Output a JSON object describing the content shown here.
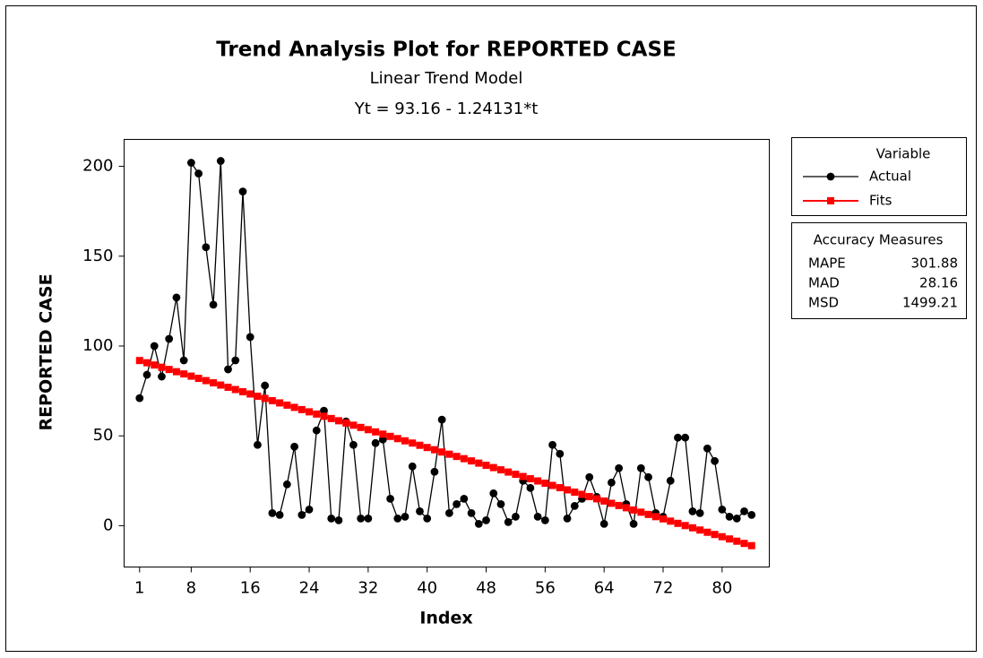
{
  "chart_data": {
    "type": "line",
    "title": "Trend Analysis Plot for REPORTED CASE",
    "subtitle": "Linear Trend Model",
    "equation": "Yt = 93.16 - 1.24131*t",
    "xlabel": "Index",
    "ylabel": "REPORTED CASE",
    "x": [
      1,
      2,
      3,
      4,
      5,
      6,
      7,
      8,
      9,
      10,
      11,
      12,
      13,
      14,
      15,
      16,
      17,
      18,
      19,
      20,
      21,
      22,
      23,
      24,
      25,
      26,
      27,
      28,
      29,
      30,
      31,
      32,
      33,
      34,
      35,
      36,
      37,
      38,
      39,
      40,
      41,
      42,
      43,
      44,
      45,
      46,
      47,
      48,
      49,
      50,
      51,
      52,
      53,
      54,
      55,
      56,
      57,
      58,
      59,
      60,
      61,
      62,
      63,
      64,
      65,
      66,
      67,
      68,
      69,
      70,
      71,
      72,
      73,
      74,
      75,
      76,
      77,
      78,
      79,
      80,
      81,
      82,
      83,
      84
    ],
    "series": [
      {
        "name": "Actual",
        "color": "#000000",
        "marker": "circle",
        "values": [
          71,
          84,
          100,
          83,
          104,
          127,
          92,
          202,
          196,
          155,
          123,
          203,
          87,
          92,
          186,
          105,
          45,
          78,
          7,
          6,
          23,
          44,
          6,
          9,
          53,
          64,
          4,
          3,
          58,
          45,
          4,
          4,
          46,
          48,
          15,
          4,
          5,
          33,
          8,
          4,
          30,
          59,
          7,
          12,
          15,
          7,
          1,
          3,
          18,
          12,
          2,
          5,
          25,
          21,
          5,
          3,
          45,
          40,
          4,
          11,
          15,
          27,
          16,
          1,
          24,
          32,
          12,
          1,
          32,
          27,
          7,
          5,
          25,
          49,
          49,
          8,
          7,
          43,
          36,
          9,
          5,
          4,
          8,
          6
        ]
      },
      {
        "name": "Fits",
        "color": "#ff0000",
        "marker": "square",
        "values": [
          91.92,
          90.68,
          89.44,
          88.19,
          86.95,
          85.71,
          84.47,
          83.23,
          81.99,
          80.75,
          79.51,
          78.26,
          77.02,
          75.78,
          74.54,
          73.3,
          72.06,
          70.82,
          69.58,
          68.33,
          67.09,
          65.85,
          64.61,
          63.37,
          62.13,
          60.89,
          59.64,
          58.4,
          57.16,
          55.92,
          54.68,
          53.44,
          52.2,
          50.96,
          49.71,
          48.47,
          47.23,
          45.99,
          44.75,
          43.51,
          42.27,
          41.02,
          39.78,
          38.54,
          37.3,
          36.06,
          34.82,
          33.58,
          32.34,
          31.09,
          29.85,
          28.61,
          27.37,
          26.13,
          24.89,
          23.65,
          22.41,
          21.16,
          19.92,
          18.68,
          17.44,
          16.2,
          14.96,
          13.72,
          12.47,
          11.23,
          9.99,
          8.75,
          7.51,
          6.27,
          5.03,
          3.79,
          2.54,
          1.3,
          0.06,
          -1.18,
          -2.42,
          -3.66,
          -4.9,
          -6.14,
          -7.39,
          -8.63,
          -9.87,
          -11.11
        ]
      }
    ],
    "xlim": [
      -1.1,
      86.4
    ],
    "xticks": [
      1,
      8,
      16,
      24,
      32,
      40,
      48,
      56,
      64,
      72,
      80
    ],
    "ylim": [
      -23,
      215
    ],
    "yticks": [
      0,
      50,
      100,
      150,
      200
    ],
    "legend_title": "Variable",
    "accuracy_measures": {
      "title": "Accuracy Measures",
      "rows": [
        {
          "name": "MAPE",
          "value": 301.88
        },
        {
          "name": "MAD",
          "value": 28.16
        },
        {
          "name": "MSD",
          "value": 1499.21
        }
      ]
    }
  }
}
